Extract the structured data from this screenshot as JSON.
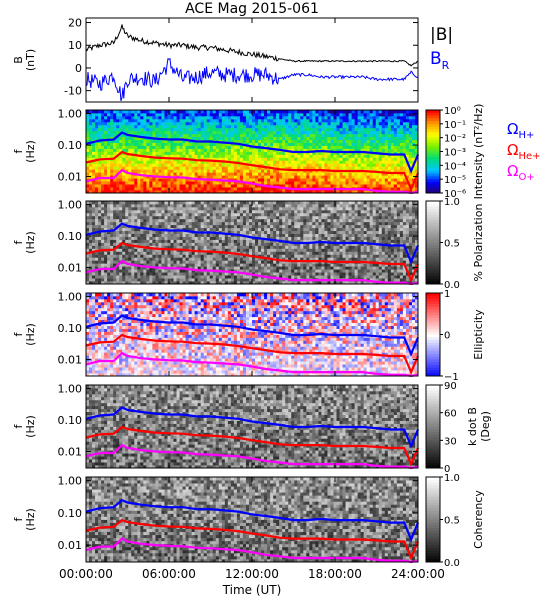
{
  "title": "ACE Mag 2015-061",
  "time_axis": {
    "label": "Time (UT)",
    "ticks": [
      "00:00:00",
      "06:00:00",
      "12:00:00",
      "18:00:00",
      "24:00:00"
    ],
    "range_hours": [
      0,
      24
    ]
  },
  "colors": {
    "B_total": "#000000",
    "B_R": "#0000ff",
    "H_plus": "#0000ff",
    "He_plus": "#ff0000",
    "O_plus": "#ff00ff"
  },
  "chart_data": [
    {
      "type": "line",
      "panel": "magnetic-field",
      "ylabel_line1": "B",
      "ylabel_line2": "(nT)",
      "ylim": [
        -15,
        22
      ],
      "yticks": [
        "-10",
        "0",
        "10",
        "20"
      ],
      "legend": [
        {
          "name": "|B|",
          "text": "|B|",
          "color": "#000000"
        },
        {
          "name": "B_R",
          "text": "B",
          "sub": "R",
          "color": "#0000ff"
        }
      ],
      "x": [
        0,
        1,
        2,
        2.6,
        3,
        4,
        5,
        6,
        7,
        8,
        9,
        10,
        11,
        12,
        13,
        14,
        15,
        16,
        17,
        18,
        19,
        20,
        21,
        22,
        23,
        23.5,
        24
      ],
      "series": [
        {
          "name": "|B|",
          "values": [
            8,
            10,
            11,
            18,
            14,
            12,
            11,
            10,
            10,
            9,
            9,
            8,
            7,
            6,
            5,
            4,
            3,
            3,
            3,
            3,
            3,
            3,
            3,
            3,
            3,
            1,
            3
          ]
        },
        {
          "name": "B_R",
          "values": [
            -5,
            -7,
            -3,
            -13,
            -5,
            -4,
            -6,
            2,
            -5,
            -4,
            -2,
            -3,
            -3,
            -3,
            -3,
            -5,
            -3,
            -3,
            -4,
            -4,
            -4,
            -4,
            -5,
            -5,
            -5,
            -2,
            -4
          ]
        }
      ]
    },
    {
      "type": "heatmap",
      "panel": "intensity",
      "ylabel_line1": "f",
      "ylabel_line2": "(Hz)",
      "colorbar_label": "Intensity (nT²/Hz)",
      "colorbar_ticks": [
        "10⁰",
        "10⁻¹",
        "10⁻²",
        "10⁻³",
        "10⁻⁴",
        "10⁻⁵",
        "10⁻⁶"
      ],
      "colormap": "rainbow",
      "legend": [
        {
          "name": "H+",
          "text": "Ω",
          "sub": "H+",
          "color": "#0000ff"
        },
        {
          "name": "He+",
          "text": "Ω",
          "sub": "He+",
          "color": "#ff0000"
        },
        {
          "name": "O+",
          "text": "Ω",
          "sub": "O+",
          "color": "#ff00ff"
        }
      ]
    },
    {
      "type": "heatmap",
      "panel": "polarization",
      "ylabel_line1": "f",
      "ylabel_line2": "(Hz)",
      "colorbar_label": "% Polarization",
      "colorbar_ticks": [
        "1.0",
        "0.5",
        "0.0"
      ],
      "colormap": "gray"
    },
    {
      "type": "heatmap",
      "panel": "ellipticity",
      "ylabel_line1": "f",
      "ylabel_line2": "(Hz)",
      "colorbar_label": "Ellipticity",
      "colorbar_ticks": [
        "1",
        "0",
        "−1"
      ],
      "colormap": "bwr"
    },
    {
      "type": "heatmap",
      "panel": "k-dot-b",
      "ylabel_line1": "f",
      "ylabel_line2": "(Hz)",
      "colorbar_label_line1": "k dot B",
      "colorbar_label_line2": "(Deg)",
      "colorbar_ticks": [
        "90",
        "60",
        "30",
        "0"
      ],
      "colormap": "gray"
    },
    {
      "type": "heatmap",
      "panel": "coherency",
      "ylabel_line1": "f",
      "ylabel_line2": "(Hz)",
      "colorbar_label": "Coherency",
      "colorbar_ticks": [
        "1.0",
        "0.5",
        "0.0"
      ],
      "colormap": "gray"
    }
  ],
  "frequency_axis": {
    "ticks": [
      "1.00",
      "0.10",
      "0.01"
    ],
    "ylim_hz": [
      0.003,
      1.3
    ]
  },
  "gyrofrequency_lines": {
    "x_hours": [
      0,
      1,
      2,
      2.6,
      3,
      4,
      5,
      6,
      7,
      8,
      9,
      10,
      11,
      12,
      13,
      14,
      15,
      16,
      17,
      18,
      19,
      20,
      21,
      22,
      23,
      23.5,
      24
    ],
    "H_plus_hz": [
      0.11,
      0.14,
      0.15,
      0.25,
      0.21,
      0.18,
      0.16,
      0.15,
      0.15,
      0.13,
      0.13,
      0.12,
      0.11,
      0.09,
      0.08,
      0.07,
      0.06,
      0.06,
      0.065,
      0.06,
      0.06,
      0.06,
      0.055,
      0.05,
      0.05,
      0.015,
      0.05
    ],
    "He_plus_hz": [
      0.028,
      0.035,
      0.037,
      0.06,
      0.052,
      0.045,
      0.04,
      0.038,
      0.037,
      0.033,
      0.032,
      0.03,
      0.027,
      0.023,
      0.02,
      0.017,
      0.016,
      0.016,
      0.016,
      0.015,
      0.015,
      0.015,
      0.014,
      0.013,
      0.013,
      0.004,
      0.013
    ],
    "O_plus_hz": [
      0.007,
      0.009,
      0.009,
      0.016,
      0.013,
      0.011,
      0.01,
      0.0095,
      0.0093,
      0.0083,
      0.008,
      0.0075,
      0.007,
      0.006,
      0.005,
      0.0045,
      0.004,
      0.004,
      0.004,
      0.004,
      0.004,
      0.004,
      0.0035,
      0.0033,
      0.0033,
      0.003,
      0.0033
    ]
  }
}
